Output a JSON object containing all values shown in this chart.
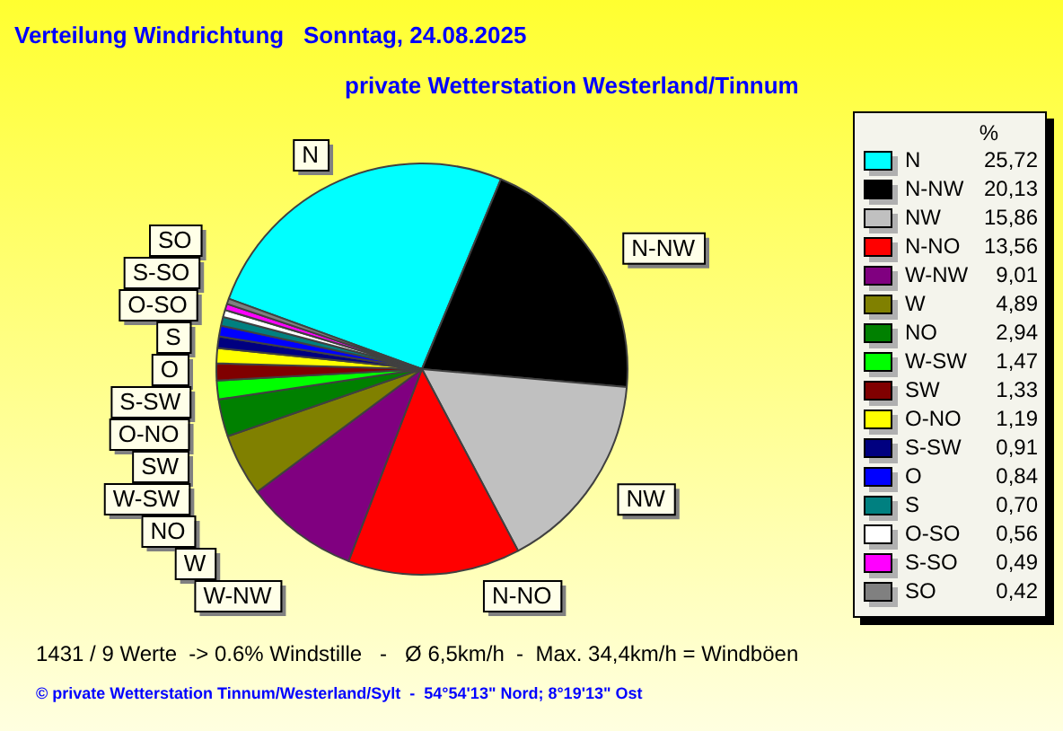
{
  "chart_data": {
    "type": "pie",
    "title": "Verteilung Windrichtung   Sonntag, 24.08.2025",
    "subtitle": "private Wetterstation Westerland/Tinnum",
    "legend_title": "%",
    "categories": [
      "N",
      "N-NW",
      "NW",
      "N-NO",
      "W-NW",
      "W",
      "NO",
      "W-SW",
      "SW",
      "O-NO",
      "S-SW",
      "O",
      "S",
      "O-SO",
      "S-SO",
      "SO"
    ],
    "values": [
      25.72,
      20.13,
      15.86,
      13.56,
      9.01,
      4.89,
      2.94,
      1.47,
      1.33,
      1.19,
      0.91,
      0.84,
      0.7,
      0.56,
      0.49,
      0.42
    ],
    "value_labels": [
      "25,72",
      "20,13",
      "15,86",
      "13,56",
      "9,01",
      "4,89",
      "2,94",
      "1,47",
      "1,33",
      "1,19",
      "0,91",
      "0,84",
      "0,70",
      "0,56",
      "0,49",
      "0,42"
    ],
    "colors": [
      "#00ffff",
      "#000000",
      "#c0c0c0",
      "#ff0000",
      "#800080",
      "#808000",
      "#008000",
      "#00ff00",
      "#800000",
      "#ffff00",
      "#000080",
      "#0000ff",
      "#008080",
      "#ffffff",
      "#ff00ff",
      "#808080"
    ],
    "legend": "right",
    "annotations": [
      "1431 / 9 Werte  -> 0.6% Windstille   -   Ø 6,5km/h  -  Max. 34,4km/h = Windböen",
      "© private Wetterstation Tinnum/Westerland/Sylt  -  54°54'13\" Nord; 8°19'13\" Ost"
    ]
  }
}
